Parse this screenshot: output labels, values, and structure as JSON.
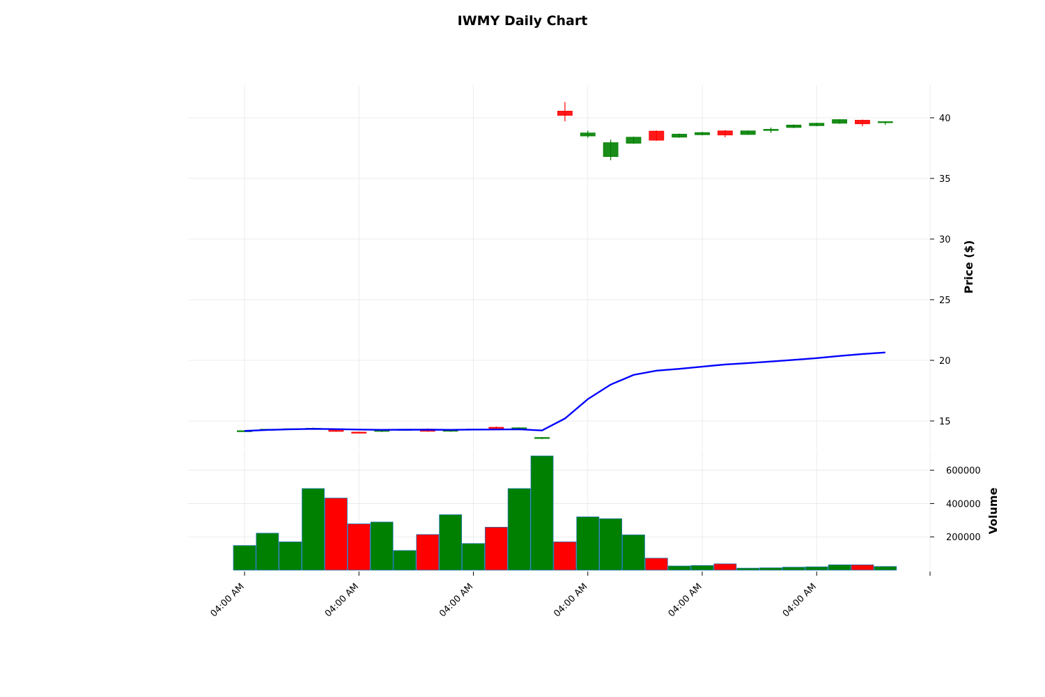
{
  "chart_data": {
    "type": "candlestick",
    "title": "IWMY Daily Chart",
    "price_panel": {
      "ylabel": "Price ($)",
      "yticks": [
        15,
        20,
        25,
        30,
        35,
        40
      ],
      "ylim": [
        12.7,
        42.7
      ]
    },
    "volume_panel": {
      "ylabel": "Volume",
      "yticks": [
        200000,
        400000,
        600000
      ],
      "ylim": [
        0,
        720000
      ]
    },
    "x_tick_labels": [
      "04:00 AM",
      "04:00 AM",
      "04:00 AM",
      "04:00 AM",
      "04:00 AM",
      "04:00 AM"
    ],
    "x_tick_indices": [
      0,
      5,
      10,
      15,
      20,
      25
    ],
    "up_color": "#008000",
    "down_color": "#ff0000",
    "line_color": "#0000ff",
    "candles": [
      {
        "open": 14.16,
        "high": 14.22,
        "low": 14.12,
        "close": 14.2
      },
      {
        "open": 14.28,
        "high": 14.34,
        "low": 14.24,
        "close": 14.32
      },
      {
        "open": 14.3,
        "high": 14.38,
        "low": 14.27,
        "close": 14.36
      },
      {
        "open": 14.34,
        "high": 14.46,
        "low": 14.3,
        "close": 14.4
      },
      {
        "open": 14.3,
        "high": 14.4,
        "low": 14.1,
        "close": 14.14
      },
      {
        "open": 14.08,
        "high": 14.12,
        "low": 14.0,
        "close": 14.03
      },
      {
        "open": 14.14,
        "high": 14.34,
        "low": 14.08,
        "close": 14.26
      },
      {
        "open": 14.28,
        "high": 14.34,
        "low": 14.24,
        "close": 14.31
      },
      {
        "open": 14.33,
        "high": 14.38,
        "low": 14.1,
        "close": 14.15
      },
      {
        "open": 14.15,
        "high": 14.32,
        "low": 14.1,
        "close": 14.28
      },
      {
        "open": 14.3,
        "high": 14.36,
        "low": 14.26,
        "close": 14.33
      },
      {
        "open": 14.48,
        "high": 14.54,
        "low": 14.3,
        "close": 14.34
      },
      {
        "open": 14.34,
        "high": 14.48,
        "low": 14.3,
        "close": 14.44
      },
      {
        "open": 13.58,
        "high": 13.68,
        "low": 13.5,
        "close": 13.64
      },
      {
        "open": 40.55,
        "high": 41.3,
        "low": 39.7,
        "close": 40.2
      },
      {
        "open": 38.5,
        "high": 38.95,
        "low": 38.35,
        "close": 38.75
      },
      {
        "open": 36.8,
        "high": 38.2,
        "low": 36.5,
        "close": 37.95
      },
      {
        "open": 37.9,
        "high": 38.45,
        "low": 37.85,
        "close": 38.4
      },
      {
        "open": 38.9,
        "high": 38.95,
        "low": 38.1,
        "close": 38.15
      },
      {
        "open": 38.4,
        "high": 38.7,
        "low": 38.35,
        "close": 38.65
      },
      {
        "open": 38.6,
        "high": 38.85,
        "low": 38.55,
        "close": 38.78
      },
      {
        "open": 38.92,
        "high": 38.98,
        "low": 38.4,
        "close": 38.58
      },
      {
        "open": 38.62,
        "high": 38.95,
        "low": 38.6,
        "close": 38.92
      },
      {
        "open": 38.95,
        "high": 39.2,
        "low": 38.75,
        "close": 39.05
      },
      {
        "open": 39.2,
        "high": 39.45,
        "low": 39.15,
        "close": 39.4
      },
      {
        "open": 39.35,
        "high": 39.6,
        "low": 39.3,
        "close": 39.55
      },
      {
        "open": 39.55,
        "high": 39.88,
        "low": 39.5,
        "close": 39.85
      },
      {
        "open": 39.8,
        "high": 39.85,
        "low": 39.3,
        "close": 39.5
      },
      {
        "open": 39.62,
        "high": 39.72,
        "low": 39.42,
        "close": 39.68
      }
    ],
    "moving_average": [
      14.18,
      14.26,
      14.31,
      14.35,
      14.33,
      14.29,
      14.27,
      14.28,
      14.28,
      14.27,
      14.29,
      14.3,
      14.31,
      14.22,
      15.2,
      16.8,
      18.0,
      18.8,
      19.15,
      19.3,
      19.48,
      19.66,
      19.77,
      19.9,
      20.04,
      20.18,
      20.36,
      20.52,
      20.65
    ],
    "volumes": [
      148000,
      222000,
      170000,
      490000,
      433000,
      278000,
      289000,
      118000,
      214000,
      333000,
      160000,
      258000,
      490000,
      686000,
      170000,
      320000,
      309000,
      212000,
      72000,
      25000,
      28000,
      38000,
      12000,
      14000,
      18000,
      20000,
      32000,
      32000,
      22000
    ],
    "volume_up": [
      true,
      true,
      true,
      true,
      false,
      false,
      true,
      true,
      false,
      true,
      true,
      false,
      true,
      true,
      false,
      true,
      true,
      true,
      false,
      true,
      true,
      false,
      true,
      true,
      true,
      true,
      true,
      false,
      true
    ]
  }
}
